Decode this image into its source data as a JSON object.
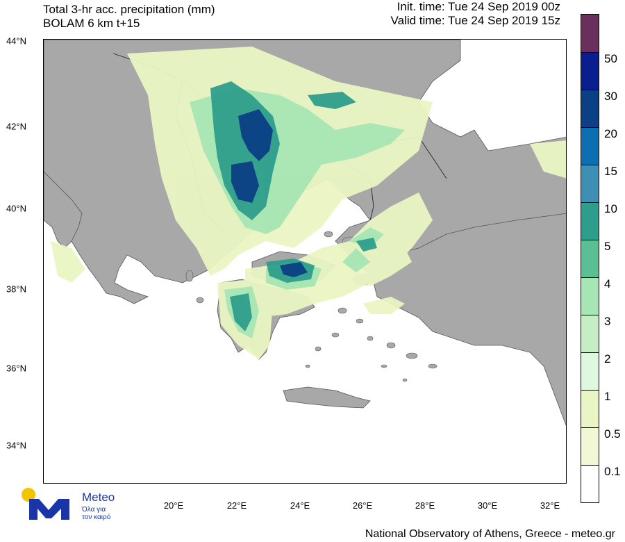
{
  "title": {
    "line1": "Total 3-hr acc. precipitation (mm)",
    "line2": "BOLAM 6 km t+15",
    "init": "Init. time: Tue 24 Sep 2019 00z",
    "valid": "Valid time: Tue 24 Sep 2019 15z"
  },
  "axes": {
    "lat_labels": [
      "44°N",
      "42°N",
      "40°N",
      "38°N",
      "36°N",
      "34°N"
    ],
    "lon_labels": [
      "20°E",
      "22°E",
      "24°E",
      "26°E",
      "28°E",
      "30°E",
      "32°E"
    ]
  },
  "legend": {
    "labels": [
      "50",
      "30",
      "20",
      "15",
      "10",
      "5",
      "4",
      "3",
      "2",
      "1",
      "0.5",
      "0.1"
    ],
    "colors": [
      "#6b2f5e",
      "#0a1f8f",
      "#0b3f86",
      "#0e6fb0",
      "#3d8fb6",
      "#2e9e8c",
      "#5bbf96",
      "#a6e6b4",
      "#c5eec4",
      "#dff6df",
      "#eaf5c4",
      "#f2f8d4",
      "#ffffff"
    ]
  },
  "map_colors": {
    "sea": "#ffffff",
    "land": "#a8a8a8",
    "border": "#000000"
  },
  "credit": "National Observatory of Athens, Greece - meteo.gr",
  "logo": {
    "name": "Meteo",
    "tagline1": "Όλα για",
    "tagline2": "τον καιρό"
  }
}
